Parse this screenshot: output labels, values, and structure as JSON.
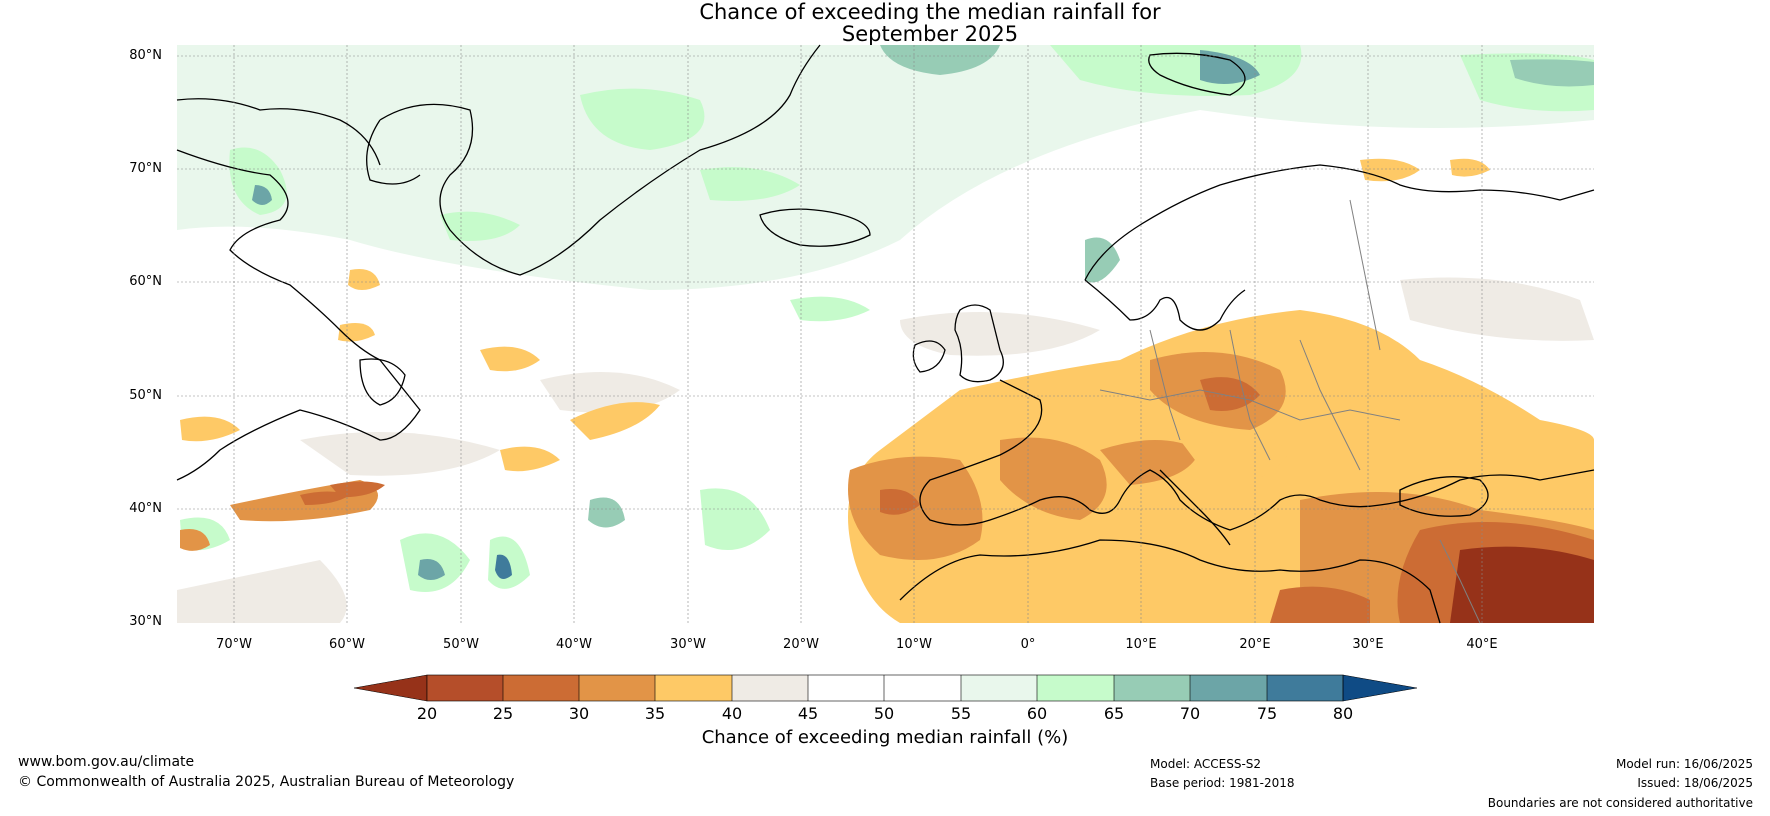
{
  "title": {
    "line1": "Chance of exceeding the median rainfall for",
    "line2": "September 2025"
  },
  "map": {
    "lat_labels": [
      "80°N",
      "70°N",
      "60°N",
      "50°N",
      "40°N",
      "30°N"
    ],
    "lon_labels": [
      "70°W",
      "60°W",
      "50°W",
      "40°W",
      "30°W",
      "20°W",
      "10°W",
      "0°",
      "10°E",
      "20°E",
      "30°E",
      "40°E"
    ],
    "lat_range": [
      30,
      81
    ],
    "lon_range": [
      -75,
      50
    ]
  },
  "colorbar": {
    "title": "Chance of exceeding median rainfall (%)",
    "ticks": [
      "20",
      "25",
      "30",
      "35",
      "40",
      "45",
      "50",
      "55",
      "60",
      "65",
      "70",
      "75",
      "80"
    ],
    "colors": {
      "below_20": "#963219",
      "c20_25": "#b54e2a",
      "c25_30": "#cc6c34",
      "c30_35": "#e29447",
      "c35_40": "#fec966",
      "c40_45": "#efebe5",
      "c45_50": "#ffffff",
      "c50_55": "#ffffff",
      "c55_60": "#e9f7ec",
      "c60_65": "#c6fbcb",
      "c65_70": "#97ccb5",
      "c70_75": "#6ca5a7",
      "c75_80": "#3f7b9b",
      "above_80": "#0f4b85"
    }
  },
  "footer": {
    "url": "www.bom.gov.au/climate",
    "copyright": "© Commonwealth of Australia 2025, Australian Bureau of Meteorology",
    "model": "Model: ACCESS-S2",
    "base_period": "Base period: 1981-2018",
    "model_run": "Model run: 16/06/2025",
    "issued": "Issued: 18/06/2025",
    "disclaimer": "Boundaries are not considered authoritative"
  }
}
